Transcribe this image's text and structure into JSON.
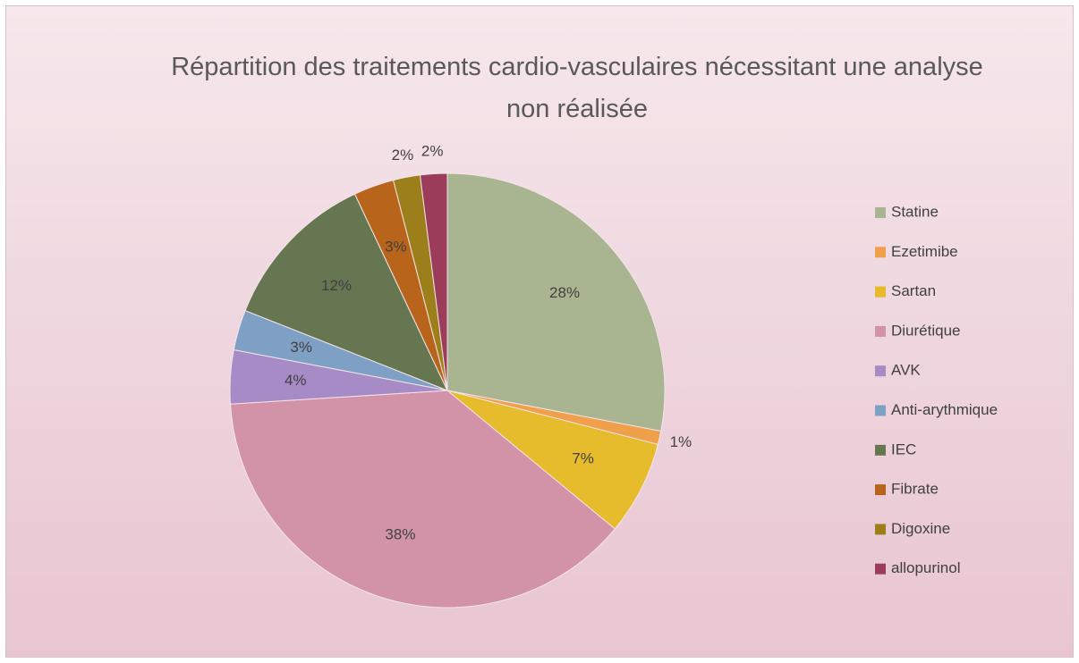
{
  "chart_data": {
    "type": "pie",
    "title": "Répartition des traitements cardio-vasculaires nécessitant une analyse non réalisée",
    "categories": [
      "Statine",
      "Ezetimibe",
      "Sartan",
      "Diurétique",
      "AVK",
      "Anti-arythmique",
      "IEC",
      "Fibrate",
      "Digoxine",
      "allopurinol"
    ],
    "values": [
      28,
      1,
      7,
      38,
      4,
      3,
      12,
      3,
      2,
      2
    ],
    "value_labels": [
      "28%",
      "1%",
      "7%",
      "38%",
      "4%",
      "3%",
      "12%",
      "3%",
      "2%",
      "2%"
    ],
    "colors": [
      "#a9b590",
      "#f0a04b",
      "#e6bb2c",
      "#d292a8",
      "#a78bc6",
      "#7fa0c5",
      "#667650",
      "#b8641a",
      "#9c7f1a",
      "#9b3c5a"
    ],
    "legend": "right"
  }
}
